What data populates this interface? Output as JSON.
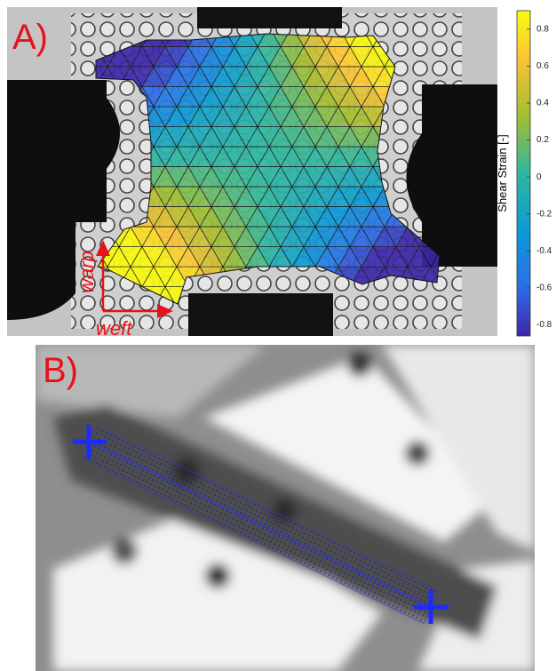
{
  "panel_a": {
    "label": "A)",
    "warp_label": "warp",
    "weft_label": "weft",
    "colorbar": {
      "label": "Shear Strain [-]",
      "lim": [
        -0.86,
        0.9
      ],
      "ticks": [
        0.8,
        0.6,
        0.4,
        0.2,
        0,
        -0.2,
        -0.4,
        -0.6,
        -0.8
      ]
    }
  },
  "panel_b": {
    "label": "B)"
  }
}
